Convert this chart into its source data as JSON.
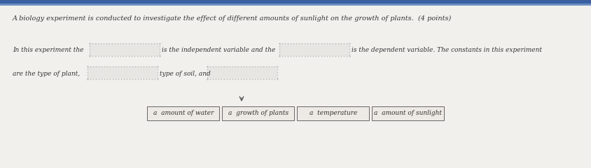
{
  "paper_color": "#f2f0ed",
  "top_bar_color": "#3a5fa0",
  "top_bar2_color": "#6a8fc0",
  "title_text": "A biology experiment is conducted to investigate the effect of different amounts of sunlight on the growth of plants.  (4 points)",
  "line1_prefix": "In this experiment the",
  "line1_mid": "is the independent variable and the",
  "line1_suffix": "is the dependent variable. The constants in this experiment",
  "line2_prefix": "are the type of plant,",
  "line2_mid": "type of soil, and",
  "answer_labels": [
    "a  amount of water",
    "a  growth of plants",
    "a  temperature",
    "a  amount of sunlight"
  ],
  "title_fontsize": 7.0,
  "body_fontsize": 6.5,
  "answer_fontsize": 6.5,
  "dot_color": "#b0b0b0",
  "text_color": "#333333",
  "box_fill": "#e8e6e2"
}
